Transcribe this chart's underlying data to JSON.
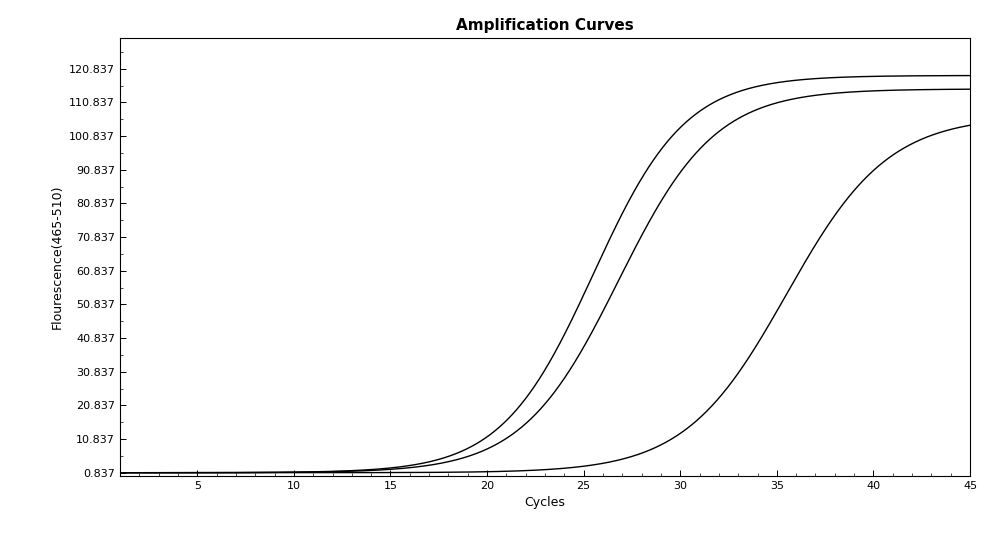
{
  "title": "Amplification Curves",
  "xlabel": "Cycles",
  "ylabel": "Flourescence(465-510)",
  "xlim": [
    1,
    45
  ],
  "ylim": [
    0.837,
    125
  ],
  "xticks": [
    5,
    10,
    15,
    20,
    25,
    30,
    35,
    40,
    45
  ],
  "yticks": [
    0.837,
    10.837,
    20.837,
    30.837,
    40.837,
    50.837,
    60.837,
    70.837,
    80.837,
    90.837,
    100.837,
    110.837,
    120.837
  ],
  "ytick_labels": [
    "0.837",
    "10.837",
    "20.837",
    "30.837",
    "40.837",
    "50.837",
    "60.837",
    "70.837",
    "80.837",
    "90.837",
    "100.837",
    "110.837",
    "120.837"
  ],
  "background_color": "#ffffff",
  "line_color": "#000000",
  "curves": [
    {
      "midpoint": 25.5,
      "L": 118.0,
      "k": 0.42
    },
    {
      "midpoint": 26.8,
      "L": 114.0,
      "k": 0.4
    },
    {
      "midpoint": 35.5,
      "L": 106.0,
      "k": 0.38
    }
  ],
  "title_fontsize": 11,
  "axis_fontsize": 9,
  "tick_fontsize": 8
}
